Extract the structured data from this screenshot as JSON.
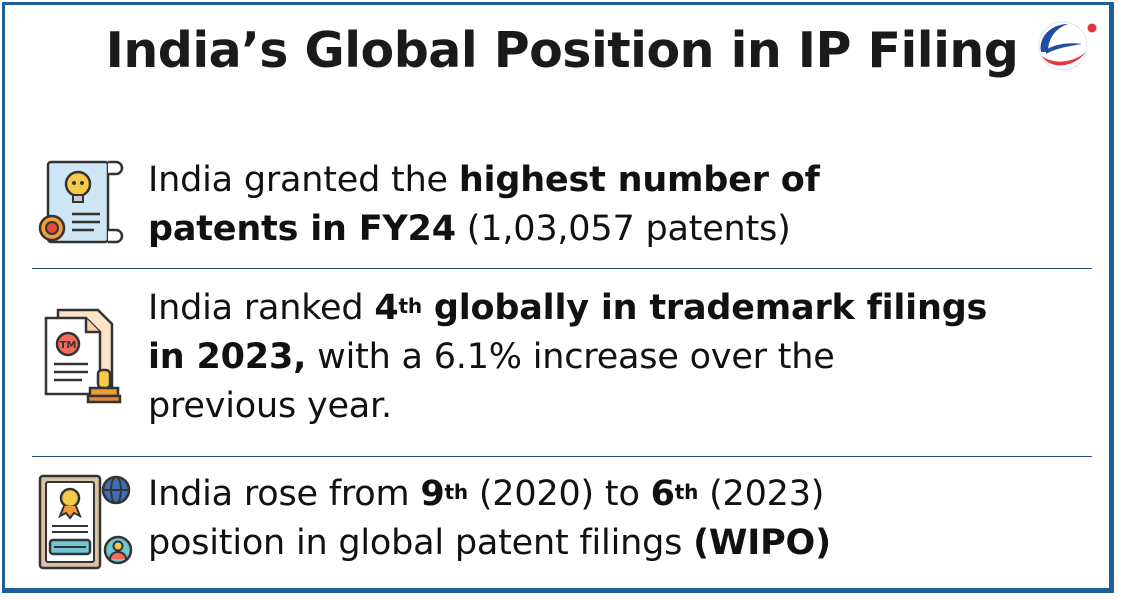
{
  "title": "India’s Global Position in IP Filing",
  "logo": {
    "icon": "globe-swoosh-logo",
    "colors": [
      "#1f4fa0",
      "#e8343a"
    ]
  },
  "colors": {
    "border": "#1f5f99",
    "divider": "#1f4f7a"
  },
  "items": [
    {
      "icon": "patent-certificate-lightbulb-icon",
      "t1": "India granted the ",
      "b1": "highest number of",
      "b2": "patents in FY24",
      "t2": " (1,03,057 patents)"
    },
    {
      "icon": "trademark-document-stamp-icon",
      "t1": "India ranked ",
      "b1": "4",
      "s1": "th",
      "b2": " globally in trademark filings",
      "b3": "in 2023,",
      "t2": " with a 6.1% increase over the",
      "t3": "previous year."
    },
    {
      "icon": "global-patent-certificate-icon",
      "t1": "India rose from ",
      "b1": "9",
      "s1": "th",
      "t2": " (2020) to ",
      "b2": "6",
      "s2": "th",
      "t3": " (2023)",
      "t4": "position in global patent filings ",
      "b3": "(WIPO)"
    }
  ]
}
